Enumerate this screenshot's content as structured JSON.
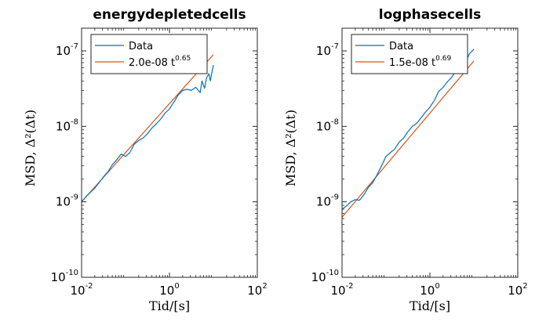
{
  "colors": {
    "data": "#0072BD",
    "fit": "#D95319",
    "axis": "#262626"
  },
  "chart_data": [
    {
      "type": "line",
      "title": "energydepletedcells",
      "xlabel": "Tid/[s]",
      "ylabel": "MSD, Δ²(Δt)",
      "xscale": "log",
      "yscale": "log",
      "xlim": [
        0.01,
        100
      ],
      "ylim": [
        1e-10,
        2e-07
      ],
      "xticks": [
        {
          "base": "10",
          "exp": "-2",
          "value": 0.01
        },
        {
          "base": "10",
          "exp": "0",
          "value": 1
        },
        {
          "base": "10",
          "exp": "2",
          "value": 100
        }
      ],
      "yticks": [
        {
          "base": "10",
          "exp": "-10",
          "value": 1e-10
        },
        {
          "base": "10",
          "exp": "-9",
          "value": 1e-09
        },
        {
          "base": "10",
          "exp": "-8",
          "value": 1e-08
        },
        {
          "base": "10",
          "exp": "-7",
          "value": 1e-07
        }
      ],
      "grid": false,
      "legend_position": "top-left",
      "series": [
        {
          "name": "Data",
          "kind": "data",
          "x": [
            0.01,
            0.0126,
            0.0158,
            0.02,
            0.0251,
            0.0316,
            0.0398,
            0.0501,
            0.0631,
            0.0794,
            0.1,
            0.126,
            0.158,
            0.2,
            0.251,
            0.316,
            0.398,
            0.501,
            0.631,
            0.794,
            1.0,
            1.26,
            1.58,
            2.0,
            2.51,
            3.16,
            3.98,
            5.01,
            5.5,
            6.31,
            7.0,
            7.94,
            8.5,
            10.0
          ],
          "y": [
            1e-09,
            1.17e-09,
            1.33e-09,
            1.52e-09,
            1.8e-09,
            2.15e-09,
            2.5e-09,
            3.1e-09,
            3.6e-09,
            4.3e-09,
            4e-09,
            4.5e-09,
            5.8e-09,
            6.5e-09,
            7e-09,
            8e-09,
            9.5e-09,
            1.08e-08,
            1.25e-08,
            1.5e-08,
            1.7e-08,
            2.1e-08,
            2.6e-08,
            3e-08,
            3.1e-08,
            3e-08,
            3.3e-08,
            2.8e-08,
            4e-08,
            3.2e-08,
            4.4e-08,
            5e-08,
            4e-08,
            6.5e-08
          ]
        },
        {
          "name": "2.0e-08 t",
          "name_exponent": "0.65",
          "kind": "fit",
          "coef": 2e-08,
          "exponent": 0.65,
          "x_range": [
            0.01,
            10
          ]
        }
      ]
    },
    {
      "type": "line",
      "title": "logphasecells",
      "xlabel": "Tid/[s]",
      "ylabel": "MSD, Δ²(Δt)",
      "xscale": "log",
      "yscale": "log",
      "xlim": [
        0.01,
        100
      ],
      "ylim": [
        1e-10,
        2e-07
      ],
      "xticks": [
        {
          "base": "10",
          "exp": "-2",
          "value": 0.01
        },
        {
          "base": "10",
          "exp": "0",
          "value": 1
        },
        {
          "base": "10",
          "exp": "2",
          "value": 100
        }
      ],
      "yticks": [
        {
          "base": "10",
          "exp": "-10",
          "value": 1e-10
        },
        {
          "base": "10",
          "exp": "-9",
          "value": 1e-09
        },
        {
          "base": "10",
          "exp": "-8",
          "value": 1e-08
        },
        {
          "base": "10",
          "exp": "-7",
          "value": 1e-07
        }
      ],
      "grid": false,
      "legend_position": "top-left",
      "series": [
        {
          "name": "Data",
          "kind": "data",
          "x": [
            0.01,
            0.0126,
            0.0158,
            0.02,
            0.0251,
            0.0316,
            0.0398,
            0.0501,
            0.0631,
            0.0794,
            0.1,
            0.126,
            0.158,
            0.2,
            0.251,
            0.316,
            0.398,
            0.501,
            0.631,
            0.794,
            1.0,
            1.26,
            1.58,
            2.0,
            2.51,
            3.16,
            3.98,
            5.01,
            6.31,
            7.94,
            10.0
          ],
          "y": [
            8e-10,
            8.8e-10,
            1e-09,
            1.07e-09,
            1.05e-09,
            1.25e-09,
            1.55e-09,
            1.8e-09,
            2.3e-09,
            3e-09,
            4e-09,
            4.5e-09,
            5e-09,
            6.2e-09,
            7e-09,
            8.5e-09,
            1e-08,
            1.1e-08,
            1.3e-08,
            1.55e-08,
            1.8e-08,
            2.2e-08,
            2.9e-08,
            3.3e-08,
            3.9e-08,
            4.5e-08,
            5.5e-08,
            5.6e-08,
            6.8e-08,
            9.2e-08,
            1.05e-07
          ]
        },
        {
          "name": "1.5e-08 t",
          "name_exponent": "0.69",
          "kind": "fit",
          "coef": 1.5e-08,
          "exponent": 0.69,
          "x_range": [
            0.01,
            10
          ]
        }
      ]
    }
  ]
}
